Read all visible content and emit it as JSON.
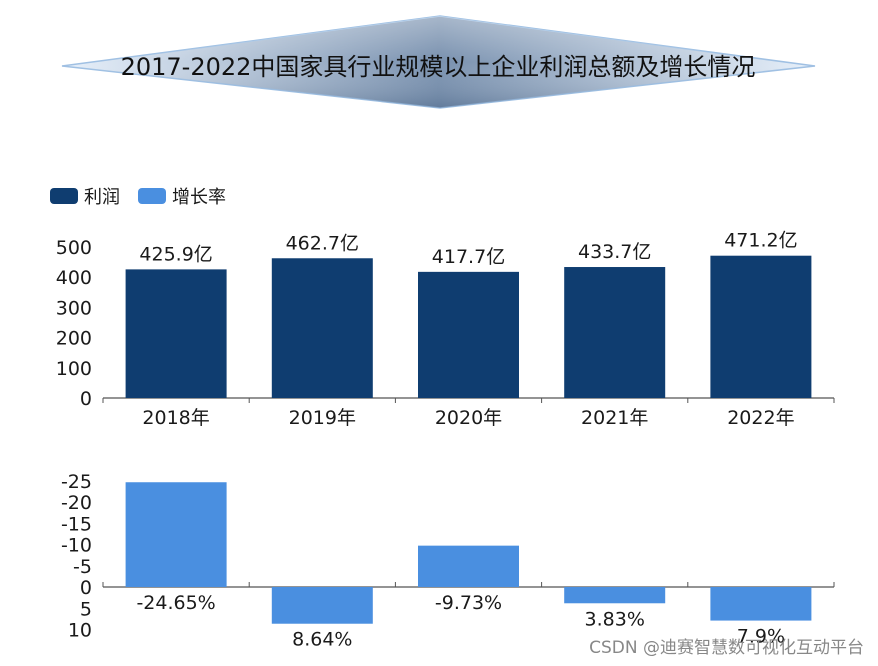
{
  "title": "2017-2022中国家具行业规模以上企业利润总额及增长情况",
  "legend": {
    "profit_label": "利润",
    "growth_label": "增长率"
  },
  "colors": {
    "profit_bar": "#0f3d70",
    "growth_bar": "#4a8fe0",
    "axis": "#555555",
    "banner_edge": "#bcd4ec",
    "banner_center": "#6e86a6"
  },
  "watermark": "CSDN @迪赛智慧数可视化互动平台",
  "chart_data": [
    {
      "type": "bar",
      "categories": [
        "2018年",
        "2019年",
        "2020年",
        "2021年",
        "2022年"
      ],
      "series": [
        {
          "name": "利润",
          "values": [
            425.9,
            462.7,
            417.7,
            433.7,
            471.2
          ]
        }
      ],
      "data_labels": [
        "425.9亿",
        "462.7亿",
        "417.7亿",
        "433.7亿",
        "471.2亿"
      ],
      "ylim": [
        0,
        500
      ],
      "yticks": [
        "0",
        "100",
        "200",
        "300",
        "400",
        "500"
      ],
      "yticks_values": [
        0,
        100,
        200,
        300,
        400,
        500
      ]
    },
    {
      "type": "bar",
      "categories": [
        "2018年",
        "2019年",
        "2020年",
        "2021年",
        "2022年"
      ],
      "series": [
        {
          "name": "增长率",
          "values": [
            -24.65,
            8.64,
            -9.73,
            3.83,
            7.9
          ]
        }
      ],
      "data_labels": [
        "-24.65%",
        "8.64%",
        "-9.73%",
        "3.83%",
        "7.9%"
      ],
      "y_inverted": true,
      "ylim": [
        -25,
        10
      ],
      "yticks": [
        "-25",
        "-20",
        "-15",
        "-10",
        "-5",
        "0",
        "5",
        "10"
      ],
      "yticks_values": [
        -25,
        -20,
        -15,
        -10,
        -5,
        0,
        5,
        10
      ]
    }
  ]
}
